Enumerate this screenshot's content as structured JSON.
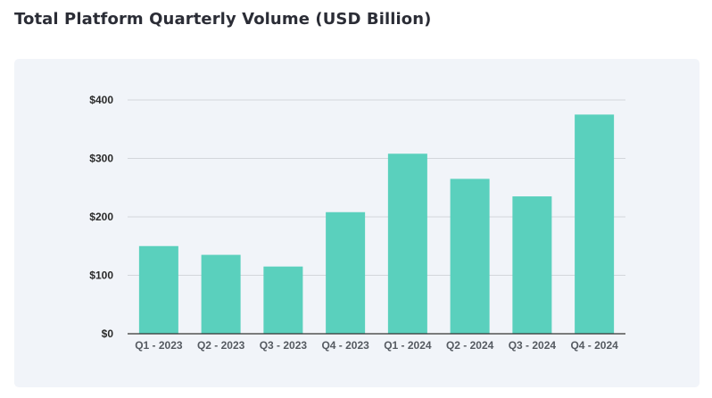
{
  "page": {
    "title": "Total Platform Quarterly Volume (USD Billion)"
  },
  "chart_data": {
    "type": "bar",
    "title": "Total Platform Quarterly Volume (USD Billion)",
    "xlabel": "",
    "ylabel": "",
    "categories": [
      "Q1 - 2023",
      "Q2 - 2023",
      "Q3 - 2023",
      "Q4 - 2023",
      "Q1 - 2024",
      "Q2 - 2024",
      "Q3 - 2024",
      "Q4 - 2024"
    ],
    "values": [
      150,
      135,
      115,
      208,
      308,
      265,
      235,
      375
    ],
    "ylim": [
      0,
      400
    ],
    "yticks": [
      0,
      100,
      200,
      300,
      400
    ],
    "ytick_labels": [
      "$0",
      "$100",
      "$200",
      "$300",
      "$400"
    ],
    "grid": true,
    "legend": "none",
    "colors": {
      "bar": "#5ad0bd",
      "gridline": "#d3d6db",
      "axis": "#333333",
      "card_background": "#f1f4f9"
    }
  }
}
